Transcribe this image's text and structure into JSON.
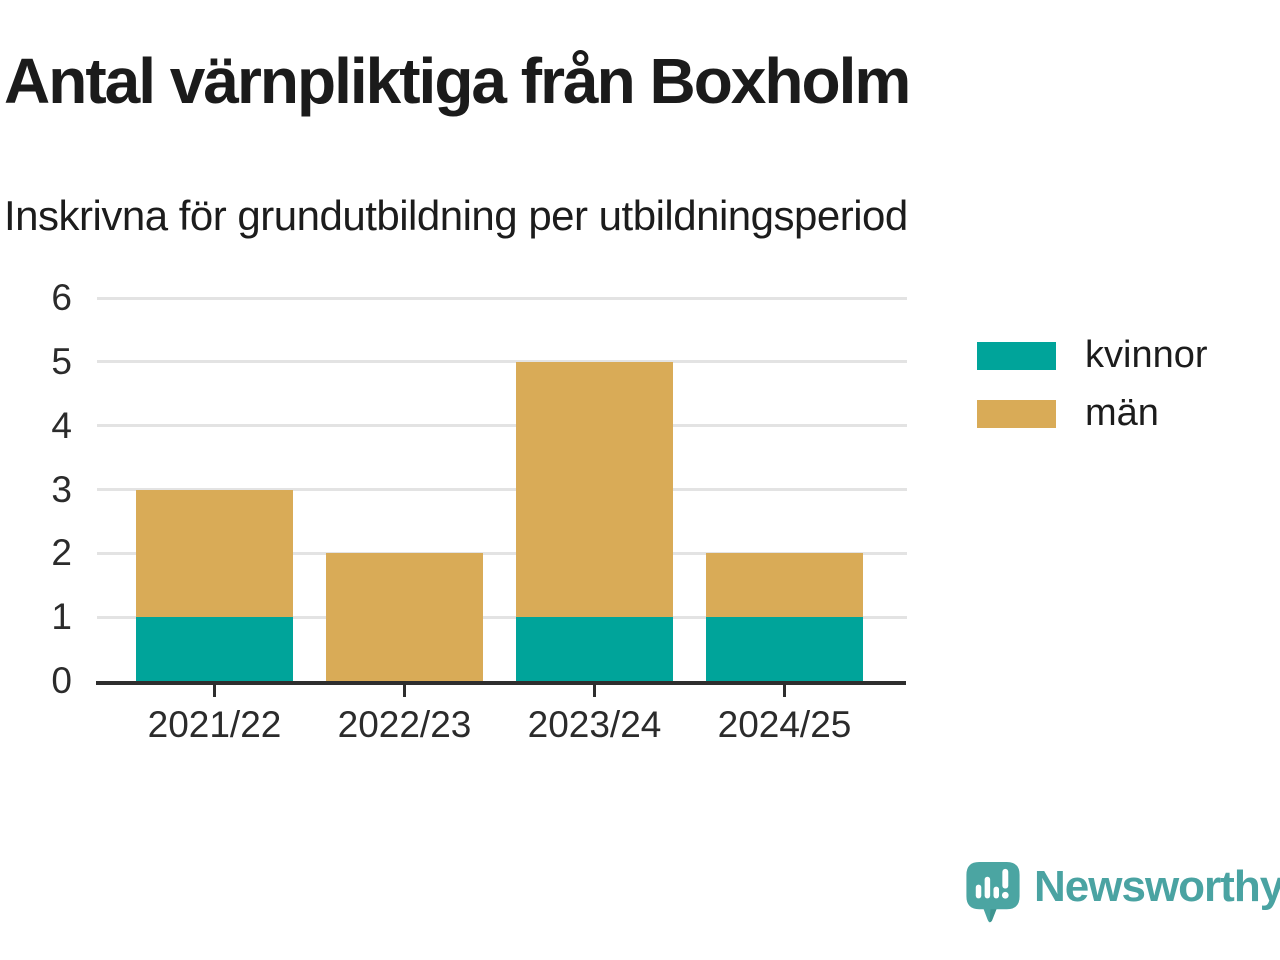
{
  "chart_data": {
    "type": "bar",
    "stacked": true,
    "title": "Antal värnpliktiga från Boxholm",
    "subtitle": "Inskrivna för grundutbildning per utbildningsperiod",
    "categories": [
      "2021/22",
      "2022/23",
      "2023/24",
      "2024/25"
    ],
    "series": [
      {
        "name": "kvinnor",
        "color": "#00a49a",
        "values": [
          1,
          0,
          1,
          1
        ]
      },
      {
        "name": "män",
        "color": "#d9ab57",
        "values": [
          2,
          2,
          4,
          1
        ]
      }
    ],
    "totals": [
      3,
      2,
      5,
      2
    ],
    "xlabel": "",
    "ylabel": "",
    "ylim": [
      0,
      6
    ],
    "yticks": [
      0,
      1,
      2,
      3,
      4,
      5,
      6
    ],
    "grid": true,
    "legend_position": "right"
  },
  "branding": {
    "logo_text": "Newsworthy",
    "logo_color": "#4aa3a2",
    "icon_color": "#4ba5a2"
  }
}
